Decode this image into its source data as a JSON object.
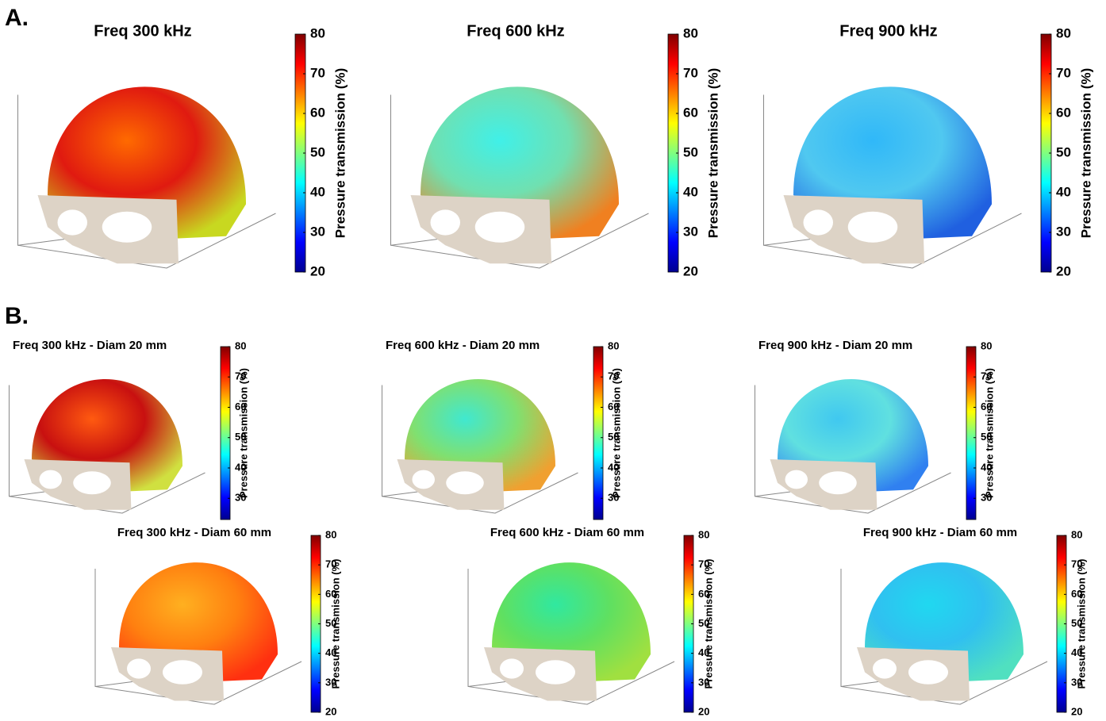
{
  "sections": [
    {
      "label": "A.",
      "panels": [
        {
          "title": "Freq 300 kHz",
          "colorbar": {
            "label": "Pressure transmission (%)",
            "lim": [
              20,
              80
            ],
            "ticks": [
              20,
              30,
              40,
              50,
              60,
              70,
              80
            ]
          }
        },
        {
          "title": "Freq 600 kHz",
          "colorbar": {
            "label": "Pressure transmission (%)",
            "lim": [
              20,
              80
            ],
            "ticks": [
              20,
              30,
              40,
              50,
              60,
              70,
              80
            ]
          }
        },
        {
          "title": "Freq 900 kHz",
          "colorbar": {
            "label": "Pressure transmission (%)",
            "lim": [
              20,
              80
            ],
            "ticks": [
              20,
              30,
              40,
              50,
              60,
              70,
              80
            ]
          }
        }
      ]
    },
    {
      "label": "B.",
      "panels": [
        {
          "title": "Freq 300 kHz - Diam 20 mm",
          "colorbar": {
            "label": "Pressure transmission (%)",
            "lim": [
              23,
              80
            ],
            "ticks": [
              30,
              40,
              50,
              60,
              70,
              80
            ]
          }
        },
        {
          "title": "Freq 600 kHz - Diam 20 mm",
          "colorbar": {
            "label": "Pressure transmission (%)",
            "lim": [
              23,
              80
            ],
            "ticks": [
              30,
              40,
              50,
              60,
              70,
              80
            ]
          }
        },
        {
          "title": "Freq 900 kHz - Diam 20 mm",
          "colorbar": {
            "label": "Pressure transmission (%)",
            "lim": [
              23,
              80
            ],
            "ticks": [
              30,
              40,
              50,
              60,
              70,
              80
            ]
          }
        },
        {
          "title": "Freq 300 kHz - Diam 60 mm",
          "colorbar": {
            "label": "Pressure transmission (%)",
            "lim": [
              20,
              80
            ],
            "ticks": [
              20,
              30,
              40,
              50,
              60,
              70,
              80
            ]
          }
        },
        {
          "title": "Freq 600 kHz - Diam 60 mm",
          "colorbar": {
            "label": "Pressure transmission (%)",
            "lim": [
              20,
              80
            ],
            "ticks": [
              20,
              30,
              40,
              50,
              60,
              70,
              80
            ]
          }
        },
        {
          "title": "Freq 900 kHz - Diam 60 mm",
          "colorbar": {
            "label": "Pressure transmission (%)",
            "lim": [
              20,
              80
            ],
            "ticks": [
              20,
              30,
              40,
              50,
              60,
              70,
              80
            ]
          }
        }
      ]
    }
  ]
}
